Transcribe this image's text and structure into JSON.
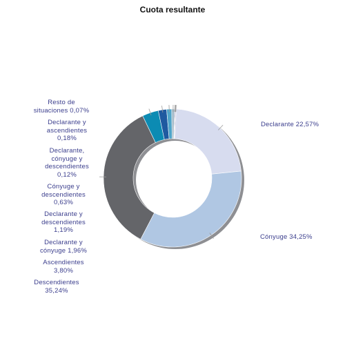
{
  "chart_data": {
    "type": "pie",
    "donut": true,
    "title": "Cuota resultante",
    "slices": [
      {
        "name": "Declarante",
        "value": 22.57,
        "label": "Declarante 22,57%",
        "color": "#d7dcef"
      },
      {
        "name": "Cónyuge",
        "value": 34.25,
        "label": "Cónyuge 34,25%",
        "color": "#b0c7e3"
      },
      {
        "name": "Descendientes",
        "value": 35.24,
        "label": "Descendientes 35,24%",
        "color": "#646569"
      },
      {
        "name": "Ascendientes",
        "value": 3.8,
        "label": "Ascendientes 3,80%",
        "color": "#0c8bb3"
      },
      {
        "name": "Declarante y cónyuge",
        "value": 1.96,
        "label": "Declarante y cónyuge 1,96%",
        "color": "#1f5aa0"
      },
      {
        "name": "Declarante y descendientes",
        "value": 1.19,
        "label": "Declarante y descendientes 1,19%",
        "color": "#4fa5c9"
      },
      {
        "name": "Cónyuge y descendientes",
        "value": 0.63,
        "label": "Cónyuge y descendientes 0,63%",
        "color": "#9fb7c6"
      },
      {
        "name": "Declarante, cónyuge y descendientes",
        "value": 0.12,
        "label": "Declarante, cónyuge y descendientes 0,12%",
        "color": "#8c9299"
      },
      {
        "name": "Declarante y ascendientes",
        "value": 0.18,
        "label": "Declarante y ascendientes 0,18%",
        "color": "#2b2f6e"
      },
      {
        "name": "Resto de situaciones",
        "value": 0.07,
        "label": "Resto de situaciones 0,07%",
        "color": "#bfc3c8"
      }
    ]
  },
  "labels": {
    "declarante": "Declarante 22,57%",
    "conyuge": "Cónyuge 34,25%",
    "resto_1": "Resto de",
    "resto_2": "situaciones 0,07%",
    "decl_asc_1": "Declarante y",
    "decl_asc_2": "ascendientes",
    "decl_asc_3": "0,18%",
    "decl_cony_desc_1": "Declarante,",
    "decl_cony_desc_2": "cónyuge y",
    "decl_cony_desc_3": "descendientes",
    "decl_cony_desc_4": "0,12%",
    "cony_desc_1": "Cónyuge y",
    "cony_desc_2": "descendientes",
    "cony_desc_3": "0,63%",
    "decl_desc_1": "Declarante y",
    "decl_desc_2": "descendientes",
    "decl_desc_3": "1,19%",
    "decl_cony_1": "Declarante y",
    "decl_cony_2": "cónyuge 1,96%",
    "asc_1": "Ascendientes",
    "asc_2": "3,80%",
    "desc_1": "Descendientes",
    "desc_2": "35,24%"
  }
}
